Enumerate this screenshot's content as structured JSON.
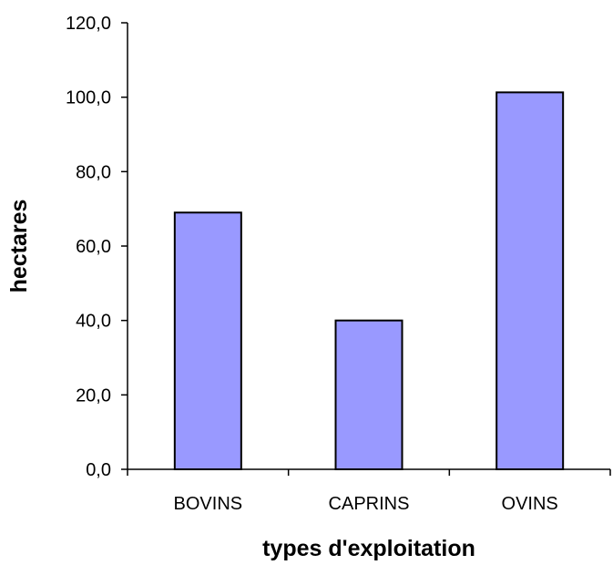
{
  "chart_data": {
    "type": "bar",
    "categories": [
      "BOVINS",
      "CAPRINS",
      "OVINS"
    ],
    "values": [
      69.0,
      40.0,
      101.3
    ],
    "xlabel": "types d'exploitation",
    "ylabel": "hectares",
    "ylim": [
      0,
      120
    ],
    "yticks": [
      "0,0",
      "20,0",
      "40,0",
      "60,0",
      "80,0",
      "100,0",
      "120,0"
    ],
    "grid": false,
    "legend": "none",
    "colors": {
      "bar_fill": "#9999ff",
      "bar_stroke": "#000000",
      "axis": "#000000",
      "text": "#000000"
    }
  }
}
